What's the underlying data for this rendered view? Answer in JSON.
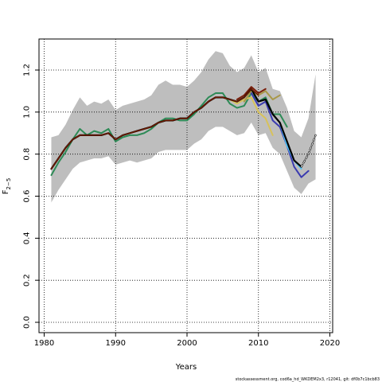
{
  "chart_data": {
    "type": "line",
    "xlabel": "Years",
    "ylabel": "F",
    "ylabel_sub": "2−5",
    "xlim": [
      1980,
      2020
    ],
    "ylim": [
      0.0,
      1.3
    ],
    "xticks": [
      1980,
      1990,
      2000,
      2010,
      2020
    ],
    "yticks": [
      0.0,
      0.2,
      0.4,
      0.6,
      0.8,
      1.0,
      1.2
    ],
    "grid": "dotted",
    "caption": "stockassessment.org, cod6a_hd_WKDEM2x3, r12041, git: df0b7c1bcb83",
    "band": {
      "color": "#bebebe",
      "x": [
        1981,
        1982,
        1983,
        1984,
        1985,
        1986,
        1987,
        1988,
        1989,
        1990,
        1991,
        1992,
        1993,
        1994,
        1995,
        1996,
        1997,
        1998,
        1999,
        2000,
        2001,
        2002,
        2003,
        2004,
        2005,
        2006,
        2007,
        2008,
        2009,
        2010,
        2011,
        2012,
        2013,
        2014,
        2015,
        2016,
        2017,
        2018
      ],
      "upper": [
        0.88,
        0.89,
        0.94,
        1.01,
        1.07,
        1.03,
        1.05,
        1.04,
        1.06,
        1.01,
        1.03,
        1.04,
        1.05,
        1.06,
        1.08,
        1.13,
        1.15,
        1.13,
        1.13,
        1.12,
        1.15,
        1.19,
        1.25,
        1.29,
        1.28,
        1.22,
        1.19,
        1.21,
        1.27,
        1.19,
        1.21,
        1.11,
        1.1,
        1.02,
        0.91,
        0.88,
        0.97,
        1.18
      ],
      "lower": [
        0.57,
        0.63,
        0.68,
        0.73,
        0.76,
        0.77,
        0.78,
        0.78,
        0.79,
        0.75,
        0.76,
        0.77,
        0.76,
        0.77,
        0.78,
        0.81,
        0.82,
        0.82,
        0.82,
        0.82,
        0.85,
        0.87,
        0.91,
        0.93,
        0.93,
        0.91,
        0.89,
        0.9,
        0.95,
        0.89,
        0.9,
        0.83,
        0.8,
        0.72,
        0.64,
        0.61,
        0.66,
        0.68
      ]
    },
    "series": [
      {
        "color": "#2e8b57",
        "width": 2,
        "x": [
          1981,
          1982,
          1983,
          1984,
          1985,
          1986,
          1987,
          1988,
          1989,
          1990,
          1991,
          1992,
          1993,
          1994,
          1995,
          1996,
          1997,
          1998,
          1999,
          2000,
          2001,
          2002,
          2003,
          2004,
          2005,
          2006,
          2007,
          2008,
          2009,
          2010,
          2011,
          2012,
          2013,
          2014
        ],
        "y": [
          0.7,
          0.76,
          0.81,
          0.87,
          0.92,
          0.89,
          0.91,
          0.9,
          0.92,
          0.86,
          0.88,
          0.89,
          0.89,
          0.9,
          0.92,
          0.95,
          0.97,
          0.97,
          0.96,
          0.96,
          0.99,
          1.03,
          1.07,
          1.09,
          1.09,
          1.04,
          1.02,
          1.03,
          1.09,
          1.05,
          1.07,
          0.99,
          0.99,
          0.93
        ]
      },
      {
        "color": "#d8c25a",
        "width": 2,
        "x": [
          2005,
          2006,
          2007,
          2008,
          2009,
          2010,
          2011,
          2012
        ],
        "y": [
          1.07,
          1.06,
          1.04,
          1.06,
          1.07,
          1.0,
          0.97,
          0.89
        ]
      },
      {
        "color": "#a89848",
        "width": 2,
        "x": [
          2008,
          2009,
          2010,
          2011,
          2012,
          2013
        ],
        "y": [
          1.05,
          1.1,
          1.08,
          1.1,
          1.06,
          1.08
        ]
      },
      {
        "color": "#3a3ab0",
        "width": 2,
        "x": [
          2009,
          2010,
          2011,
          2012,
          2013,
          2014,
          2015,
          2016,
          2017
        ],
        "y": [
          1.09,
          1.03,
          1.05,
          0.96,
          0.93,
          0.84,
          0.74,
          0.69,
          0.72
        ]
      },
      {
        "color": "#4fc3f7",
        "width": 2,
        "x": [
          2013,
          2014,
          2015,
          2016
        ],
        "y": [
          0.95,
          0.84,
          0.77,
          0.73
        ]
      },
      {
        "color": "#7a1e0a",
        "width": 2,
        "x": [
          2007,
          2008,
          2009,
          2010,
          2011
        ],
        "y": [
          1.06,
          1.08,
          1.12,
          1.09,
          1.11
        ]
      },
      {
        "color": "#000000",
        "width": 2.2,
        "x": [
          1981,
          1982,
          1983,
          1984,
          1985,
          1986,
          1987,
          1988,
          1989,
          1990,
          1991,
          1992,
          1993,
          1994,
          1995,
          1996,
          1997,
          1998,
          1999,
          2000,
          2001,
          2002,
          2003,
          2004,
          2005,
          2006,
          2007,
          2008,
          2009,
          2010,
          2011,
          2012,
          2013,
          2014,
          2015,
          2016
        ],
        "y": [
          0.73,
          0.78,
          0.83,
          0.87,
          0.89,
          0.89,
          0.89,
          0.89,
          0.9,
          0.87,
          0.89,
          0.9,
          0.91,
          0.92,
          0.93,
          0.95,
          0.96,
          0.96,
          0.97,
          0.97,
          1.0,
          1.02,
          1.05,
          1.07,
          1.07,
          1.06,
          1.05,
          1.07,
          1.11,
          1.05,
          1.06,
          0.99,
          0.95,
          0.86,
          0.77,
          0.74
        ]
      },
      {
        "color": "#000000",
        "width": 2.2,
        "dashed": true,
        "x": [
          2016,
          2017,
          2018
        ],
        "y": [
          0.74,
          0.8,
          0.89
        ]
      },
      {
        "color": "#ffffff",
        "width": 1,
        "dashed": true,
        "x": [
          2016,
          2017,
          2018
        ],
        "y": [
          0.74,
          0.8,
          0.89
        ]
      },
      {
        "color": "#6b1a00",
        "width": 1.6,
        "x": [
          1981,
          1982,
          1983,
          1984,
          1985,
          1986,
          1987,
          1988,
          1989,
          1990,
          1991,
          1992,
          1993,
          1994,
          1995,
          1996,
          1997,
          1998,
          1999,
          2000,
          2001,
          2002,
          2003,
          2004,
          2005,
          2006,
          2007,
          2008,
          2009,
          2010
        ],
        "y": [
          0.73,
          0.78,
          0.83,
          0.87,
          0.89,
          0.89,
          0.89,
          0.89,
          0.9,
          0.87,
          0.89,
          0.9,
          0.91,
          0.92,
          0.93,
          0.95,
          0.96,
          0.96,
          0.97,
          0.97,
          1.0,
          1.02,
          1.05,
          1.07,
          1.07,
          1.06,
          1.05,
          1.07,
          1.11,
          1.08
        ]
      }
    ]
  }
}
